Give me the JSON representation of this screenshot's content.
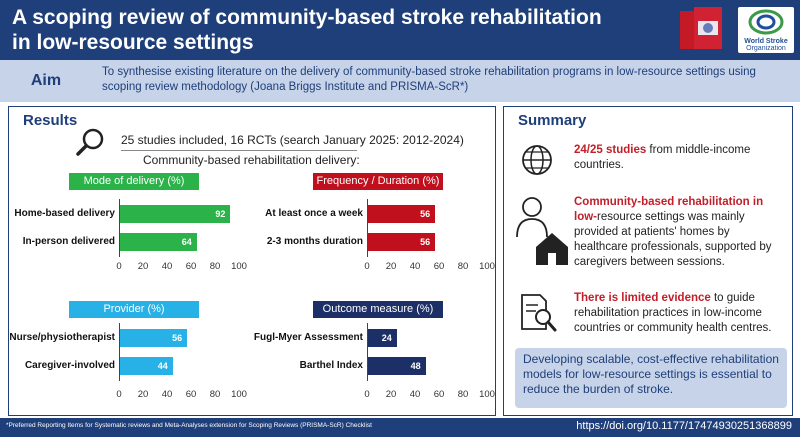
{
  "header": {
    "title": "A scoping review of community-based stroke rehabilitation in low-resource settings",
    "logo_text": [
      "World Stroke",
      "Organization"
    ]
  },
  "aim": {
    "label": "Aim",
    "text": "To synthesise existing literature on the delivery of community-based stroke rehabilitation programs in low-resource settings using scoping review methodology (Joana Briggs Institute and PRISMA-ScR*)"
  },
  "results": {
    "heading": "Results",
    "studies": "25 studies included, 16 RCTs (search January 2025: 2012-2024)",
    "delivery_heading": "Community-based rehabilitation delivery:"
  },
  "chart_data": [
    {
      "type": "bar",
      "title": "Mode of delivery (%)",
      "categories": [
        "Home-based delivery",
        "In-person delivered"
      ],
      "values": [
        92,
        64
      ],
      "xlim": [
        0,
        100
      ],
      "ticks": [
        "0",
        "20",
        "40",
        "60",
        "80",
        "100"
      ],
      "color": "#2bb34a"
    },
    {
      "type": "bar",
      "title": "Frequency / Duration (%)",
      "categories": [
        "At least once a week",
        "2-3 months duration"
      ],
      "values": [
        56,
        56
      ],
      "xlim": [
        0,
        100
      ],
      "ticks": [
        "0",
        "20",
        "40",
        "60",
        "80",
        "100"
      ],
      "color": "#c0101e"
    },
    {
      "type": "bar",
      "title": "Provider (%)",
      "categories": [
        "Nurse/physiotherapist",
        "Caregiver-involved"
      ],
      "values": [
        56,
        44
      ],
      "xlim": [
        0,
        100
      ],
      "ticks": [
        "0",
        "20",
        "40",
        "60",
        "80",
        "100"
      ],
      "color": "#27b1e6"
    },
    {
      "type": "bar",
      "title": "Outcome measure (%)",
      "categories": [
        "Fugl-Myer Assessment",
        "Barthel Index"
      ],
      "values": [
        24,
        48
      ],
      "xlim": [
        0,
        100
      ],
      "ticks": [
        "0",
        "20",
        "40",
        "60",
        "80",
        "100"
      ],
      "color": "#1c2f66"
    }
  ],
  "summary": {
    "heading": "Summary",
    "items": [
      {
        "bold": "24/25 studies",
        "text": " from middle-income countries."
      },
      {
        "bold": "Community-based rehabilitation in low-",
        "text": "resource settings was mainly provided at patients' homes by healthcare professionals, supported by caregivers between sessions."
      },
      {
        "bold": "There is limited evidence",
        "text": " to guide rehabilitation practices in low-income countries or community health centres."
      }
    ],
    "conclusion": "Developing scalable, cost-effective rehabilitation models for low-resource settings is essential to reduce the burden of stroke."
  },
  "footer": {
    "footnote": "*Preferred Reporting Items for Systematic reviews and Meta-Analyses extension for Scoping Reviews (PRISMA-ScR) Checklist",
    "doi": "https://doi.org/10.1177/17474930251368899"
  },
  "colors": {
    "navy": "#1f3f7a",
    "light_blue": "#c6d3e8",
    "red_text": "#c0202a"
  }
}
